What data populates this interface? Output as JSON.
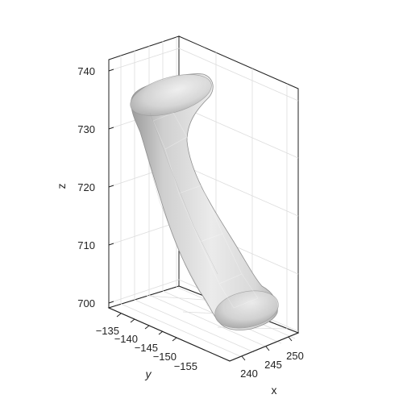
{
  "chart_data": {
    "type": "3d-surface",
    "title": "",
    "xlabel": "x",
    "ylabel": "y",
    "zlabel": "z",
    "x_ticks": [
      240,
      245,
      250
    ],
    "y_ticks": [
      -135,
      -140,
      -145,
      -150,
      -155
    ],
    "y_tick_labels": [
      "−135",
      "−140",
      "−145",
      "−150",
      "−155"
    ],
    "z_ticks": [
      700,
      710,
      720,
      730,
      740
    ],
    "grid": true,
    "legend": "none",
    "surface_color": "#e4e4e4",
    "shade_color": "#a9a9a9",
    "axis_color": "#222222",
    "grid_color": "#dddddd"
  }
}
